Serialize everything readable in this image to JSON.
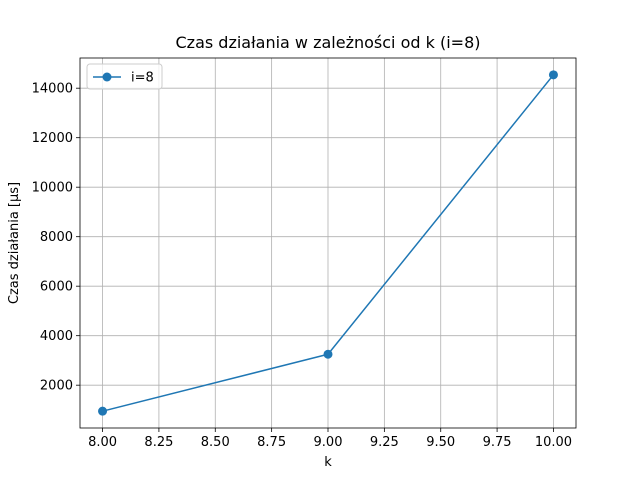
{
  "chart_data": {
    "type": "line",
    "title": "Czas działania w zależności od k (i=8)",
    "xlabel": "k",
    "ylabel": "Czas działania [μs]",
    "xlim": [
      7.9,
      10.1
    ],
    "ylim": [
      270,
      15220
    ],
    "xticks": [
      8.0,
      8.25,
      8.5,
      8.75,
      9.0,
      9.25,
      9.5,
      9.75,
      10.0
    ],
    "xtick_labels": [
      "8.00",
      "8.25",
      "8.50",
      "8.75",
      "9.00",
      "9.25",
      "9.50",
      "9.75",
      "10.00"
    ],
    "yticks": [
      2000,
      4000,
      6000,
      8000,
      10000,
      12000,
      14000
    ],
    "ytick_labels": [
      "2000",
      "4000",
      "6000",
      "8000",
      "10000",
      "12000",
      "14000"
    ],
    "grid": true,
    "legend_position": "top-left",
    "series": [
      {
        "name": "i=8",
        "color": "#1f77b4",
        "marker": "circle",
        "x": [
          8.0,
          9.0,
          10.0
        ],
        "y": [
          950,
          3250,
          14540
        ]
      }
    ]
  }
}
